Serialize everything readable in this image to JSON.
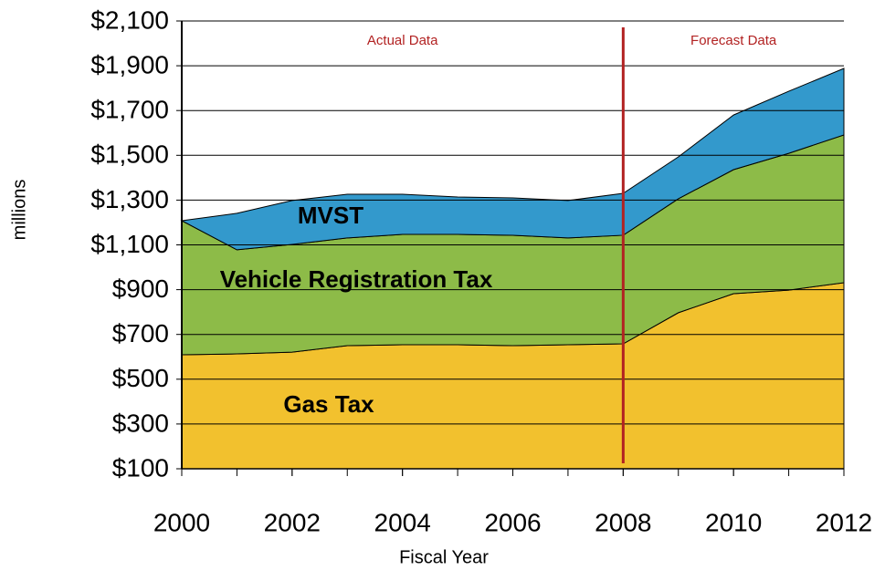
{
  "chart_data": {
    "type": "stacked_area",
    "xlabel": "Fiscal Year",
    "ylabel": "millions",
    "x": [
      2000,
      2001,
      2002,
      2003,
      2004,
      2005,
      2006,
      2007,
      2008,
      2009,
      2010,
      2011,
      2012
    ],
    "series": [
      {
        "name": "Gas Tax",
        "color": "#f2c12e",
        "values": [
          609,
          613,
          621,
          650,
          654,
          654,
          650,
          654,
          658,
          797,
          882,
          898,
          931
        ]
      },
      {
        "name": "Vehicle Registration Tax",
        "color": "#8dbb48",
        "values": [
          599,
          465,
          481,
          481,
          493,
          493,
          493,
          477,
          485,
          509,
          554,
          611,
          660
        ]
      },
      {
        "name": "MVST",
        "color": "#3399cc",
        "values": [
          0,
          163,
          196,
          195,
          179,
          167,
          167,
          167,
          187,
          187,
          244,
          277,
          297
        ]
      }
    ],
    "xlim": [
      2000,
      2012
    ],
    "xticks": [
      2000,
      2002,
      2004,
      2006,
      2008,
      2010,
      2012
    ],
    "ylim": [
      100,
      2100
    ],
    "yticks": [
      {
        "value": 100,
        "label": "$100"
      },
      {
        "value": 300,
        "label": "$300"
      },
      {
        "value": 500,
        "label": "$500"
      },
      {
        "value": 700,
        "label": "$700"
      },
      {
        "value": 900,
        "label": "$900"
      },
      {
        "value": 1100,
        "label": "$1,100"
      },
      {
        "value": 1300,
        "label": "$1,300"
      },
      {
        "value": 1500,
        "label": "$1,500"
      },
      {
        "value": 1700,
        "label": "$1,700"
      },
      {
        "value": 1900,
        "label": "$1,900"
      },
      {
        "value": 2100,
        "label": "$2,100"
      }
    ],
    "grid": true,
    "annotations": [
      {
        "x": 2008,
        "color": "#b22222",
        "left_text": "Actual Data",
        "right_text": "Forecast Data"
      }
    ]
  }
}
